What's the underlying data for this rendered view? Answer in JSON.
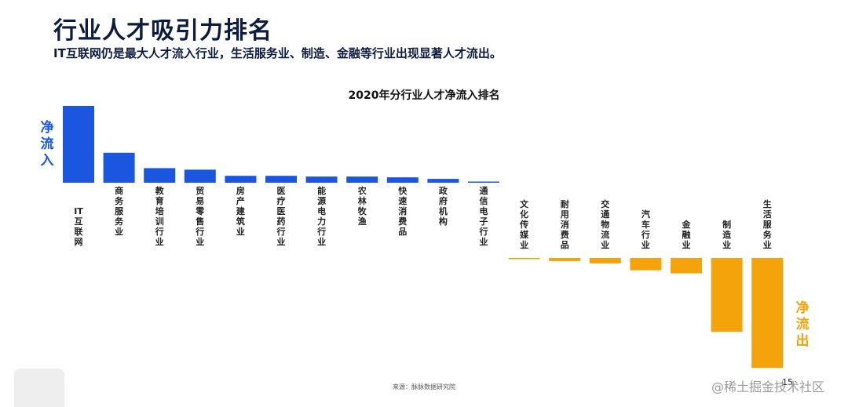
{
  "title": "行业人才吸引力排名",
  "subtitle": "IT互联网仍是最大人才流入行业，生活服务业、制造、金融等行业出现显著人才流出。",
  "source": "来源：脉脉数据研究院",
  "page_number": "15",
  "watermark": "@稀土掘金技术社区",
  "colors": {
    "inflow": "#1a56e0",
    "outflow": "#f5a30a"
  },
  "chart_data": {
    "type": "bar",
    "title": "2020年分行业人才净流入排名",
    "inflow_label": "净流入",
    "outflow_label": "净流出",
    "categories": [
      "IT互联网",
      "商务服务业",
      "教育培训行业",
      "贸易零售行业",
      "房产建筑业",
      "医疗医药行业",
      "能源电力行业",
      "农林牧渔",
      "快速消费品",
      "政府机构",
      "通信电子行业",
      "文化传媒业",
      "耐用消费品",
      "交通物流业",
      "汽车行业",
      "金融业",
      "制造业",
      "生活服务业"
    ],
    "values": [
      100,
      39,
      19,
      17,
      9,
      9,
      8,
      8,
      7,
      5,
      1,
      -1,
      -4,
      -7,
      -16,
      -20,
      -96,
      -143
    ],
    "ylim": [
      -145,
      102
    ]
  }
}
